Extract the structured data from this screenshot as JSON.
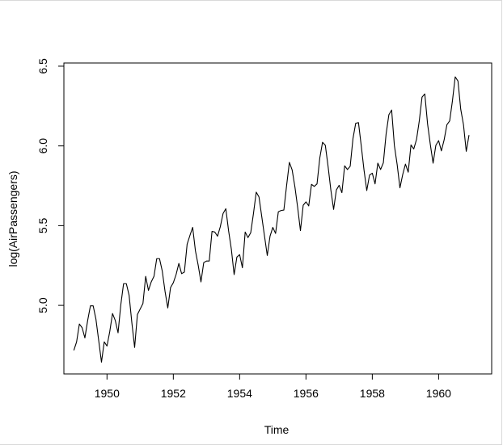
{
  "chart_data": {
    "type": "line",
    "title": "",
    "xlabel": "Time",
    "ylabel": "log(AirPassengers)",
    "xlim": [
      1948.7,
      1961.6
    ],
    "ylim": [
      4.57,
      6.52
    ],
    "x_ticks": [
      1950,
      1952,
      1954,
      1956,
      1958,
      1960
    ],
    "x_tick_labels": [
      "1950",
      "1952",
      "1954",
      "1956",
      "1958",
      "1960"
    ],
    "y_ticks": [
      5.0,
      5.5,
      6.0,
      6.5
    ],
    "y_tick_labels": [
      "5.0",
      "5.5",
      "6.0",
      "6.5"
    ],
    "grid": false,
    "legend": "none",
    "x_start": 1949.0,
    "x_step": 0.0833333,
    "series": [
      {
        "color": "#000000",
        "values": [
          4.718,
          4.771,
          4.883,
          4.86,
          4.796,
          4.905,
          4.997,
          4.997,
          4.913,
          4.779,
          4.644,
          4.771,
          4.745,
          4.836,
          4.949,
          4.905,
          4.828,
          5.004,
          5.136,
          5.136,
          5.063,
          4.89,
          4.736,
          4.942,
          4.977,
          5.011,
          5.182,
          5.094,
          5.147,
          5.182,
          5.293,
          5.293,
          5.215,
          5.088,
          4.984,
          5.112,
          5.142,
          5.193,
          5.263,
          5.199,
          5.209,
          5.384,
          5.438,
          5.489,
          5.342,
          5.252,
          5.147,
          5.268,
          5.278,
          5.278,
          5.464,
          5.46,
          5.434,
          5.493,
          5.576,
          5.606,
          5.468,
          5.352,
          5.193,
          5.303,
          5.318,
          5.236,
          5.46,
          5.425,
          5.455,
          5.576,
          5.71,
          5.68,
          5.557,
          5.434,
          5.313,
          5.434,
          5.489,
          5.451,
          5.587,
          5.595,
          5.598,
          5.753,
          5.897,
          5.849,
          5.743,
          5.613,
          5.469,
          5.628,
          5.649,
          5.624,
          5.759,
          5.746,
          5.762,
          5.924,
          6.023,
          6.004,
          5.872,
          5.724,
          5.602,
          5.724,
          5.753,
          5.707,
          5.875,
          5.852,
          5.872,
          6.045,
          6.142,
          6.146,
          6.001,
          5.849,
          5.72,
          5.817,
          5.829,
          5.762,
          5.892,
          5.852,
          5.894,
          6.075,
          6.196,
          6.225,
          6.001,
          5.883,
          5.737,
          5.82,
          5.886,
          5.835,
          6.006,
          5.981,
          6.04,
          6.157,
          6.306,
          6.326,
          6.138,
          6.009,
          5.892,
          6.004,
          6.033,
          5.969,
          6.038,
          6.133,
          6.157,
          6.282,
          6.433,
          6.407,
          6.23,
          6.133,
          5.966,
          6.068
        ]
      }
    ]
  }
}
